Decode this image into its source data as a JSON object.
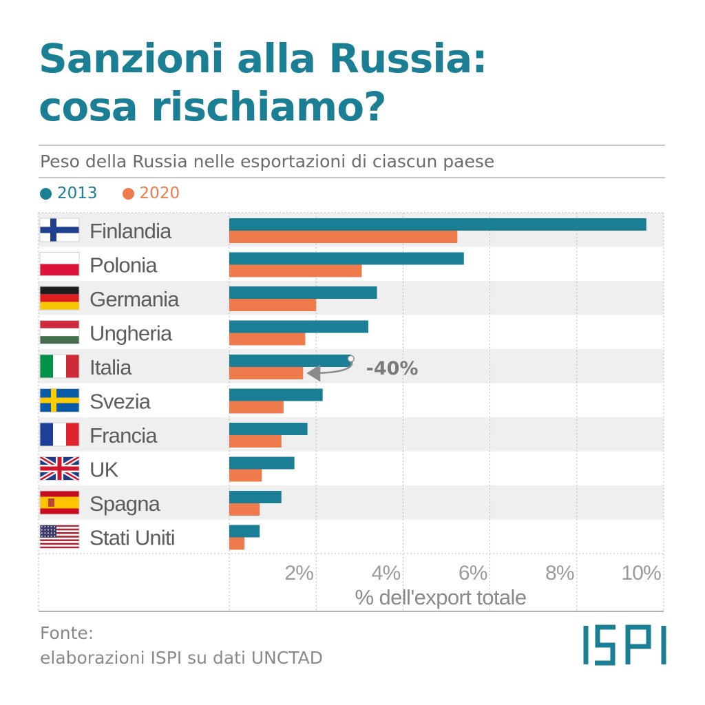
{
  "header": {
    "title_line1": "Sanzioni alla Russia:",
    "title_line2": "cosa rischiamo?",
    "subtitle": "Peso della Russia nelle esportazioni di ciascun paese"
  },
  "legend": [
    {
      "label": "2013",
      "color": "#1a7e94"
    },
    {
      "label": "2020",
      "color": "#ef7a4c"
    }
  ],
  "annotation": {
    "label": "-40%"
  },
  "footer": {
    "source_label": "Fonte:",
    "source_text": "elaborazioni ISPI su dati UNCTAD",
    "logo": "ISPI"
  },
  "chart_data": {
    "type": "bar",
    "orientation": "horizontal",
    "categories": [
      "Finlandia",
      "Polonia",
      "Germania",
      "Ungheria",
      "Italia",
      "Svezia",
      "Francia",
      "UK",
      "Spagna",
      "Stati Uniti"
    ],
    "flags": [
      "finland-flag",
      "poland-flag",
      "germany-flag",
      "hungary-flag",
      "italy-flag",
      "sweden-flag",
      "france-flag",
      "uk-flag",
      "spain-flag",
      "usa-flag"
    ],
    "series": [
      {
        "name": "2013",
        "color": "#1a7e94",
        "values": [
          9.6,
          5.4,
          3.4,
          3.2,
          2.8,
          2.15,
          1.8,
          1.5,
          1.2,
          0.7
        ]
      },
      {
        "name": "2020",
        "color": "#ef7a4c",
        "values": [
          5.25,
          3.05,
          2.0,
          1.75,
          1.7,
          1.25,
          1.2,
          0.75,
          0.7,
          0.35
        ]
      }
    ],
    "xticks": [
      "2%",
      "4%",
      "6%",
      "8%",
      "10%"
    ],
    "xtick_values": [
      2,
      4,
      6,
      8,
      10
    ],
    "xlabel": "% dell'export totale",
    "xlim": [
      0,
      10
    ],
    "grid": true,
    "row_banding": true
  }
}
